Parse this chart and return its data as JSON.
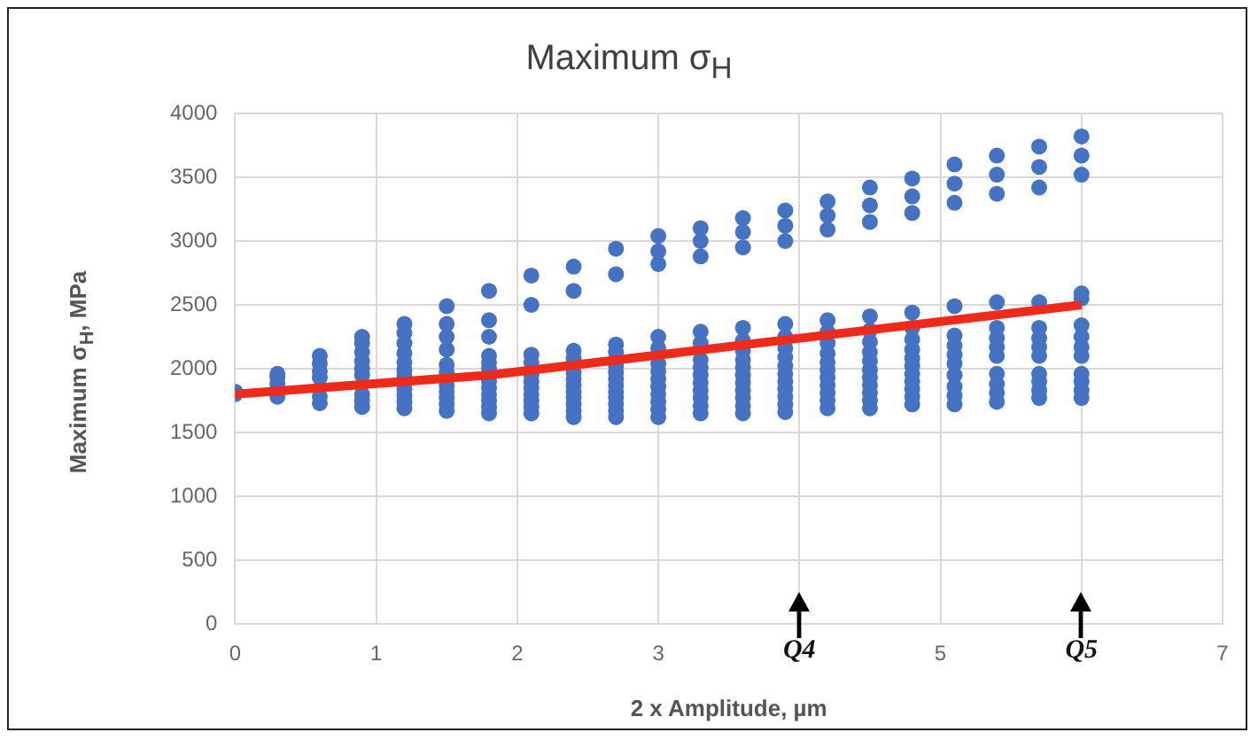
{
  "chart_data": {
    "type": "scatter",
    "title": "Maximum σ$_{H}$",
    "xlabel": "2 x Amplitude, µm",
    "ylabel": "Maximum σ$_{H}$, MPa",
    "xlim": [
      0,
      7
    ],
    "xticks": [
      0,
      1,
      2,
      3,
      {
        "value": 4,
        "label": null
      },
      5,
      {
        "value": 6,
        "label": null
      },
      7
    ],
    "ylim": [
      0,
      4000
    ],
    "yticks": [
      0,
      500,
      1000,
      1500,
      2000,
      2500,
      3000,
      3500,
      4000
    ],
    "grid": true,
    "marker": "circle",
    "annotations": [
      "Q4",
      "Q5"
    ],
    "series": [
      {
        "color": "#4472c4",
        "x": [
          0,
          0,
          0.3,
          0.3,
          0.3,
          0.3,
          0.6,
          0.6,
          0.6,
          0.6,
          0.6,
          0.6,
          0.9,
          0.9,
          0.9,
          0.9,
          0.9,
          0.9,
          0.9,
          0.9,
          0.9,
          1.2,
          1.2,
          1.2,
          1.2,
          1.2,
          1.2,
          1.2,
          1.2,
          1.2,
          1.2,
          1.2,
          1.5,
          1.5,
          1.5,
          1.5,
          1.5,
          1.5,
          1.5,
          1.5,
          1.5,
          1.5,
          1.5,
          1.8,
          1.8,
          1.8,
          1.8,
          1.8,
          1.8,
          1.8,
          1.8,
          1.8,
          1.8,
          1.8,
          1.8,
          2.1,
          2.1,
          2.1,
          2.1,
          2.1,
          2.1,
          2.1,
          2.1,
          2.1,
          2.1,
          2.1,
          2.4,
          2.4,
          2.4,
          2.4,
          2.4,
          2.4,
          2.4,
          2.4,
          2.4,
          2.4,
          2.4,
          2.4,
          2.7,
          2.7,
          2.7,
          2.7,
          2.7,
          2.7,
          2.7,
          2.7,
          2.7,
          2.7,
          2.7,
          2.7,
          2.7,
          3.0,
          3.0,
          3.0,
          3.0,
          3.0,
          3.0,
          3.0,
          3.0,
          3.0,
          3.0,
          3.0,
          3.0,
          3.0,
          3.3,
          3.3,
          3.3,
          3.3,
          3.3,
          3.3,
          3.3,
          3.3,
          3.3,
          3.3,
          3.3,
          3.3,
          3.3,
          3.6,
          3.6,
          3.6,
          3.6,
          3.6,
          3.6,
          3.6,
          3.6,
          3.6,
          3.6,
          3.6,
          3.6,
          3.6,
          3.6,
          3.9,
          3.9,
          3.9,
          3.9,
          3.9,
          3.9,
          3.9,
          3.9,
          3.9,
          3.9,
          3.9,
          3.9,
          3.9,
          3.9,
          4.2,
          4.2,
          4.2,
          4.2,
          4.2,
          4.2,
          4.2,
          4.2,
          4.2,
          4.2,
          4.2,
          4.2,
          4.2,
          4.2,
          4.5,
          4.5,
          4.5,
          4.5,
          4.5,
          4.5,
          4.5,
          4.5,
          4.5,
          4.5,
          4.5,
          4.5,
          4.5,
          4.5,
          4.8,
          4.8,
          4.8,
          4.8,
          4.8,
          4.8,
          4.8,
          4.8,
          4.8,
          4.8,
          4.8,
          4.8,
          4.8,
          4.8,
          5.1,
          5.1,
          5.1,
          5.1,
          5.1,
          5.1,
          5.1,
          5.1,
          5.1,
          5.1,
          5.1,
          5.1,
          5.4,
          5.4,
          5.4,
          5.4,
          5.4,
          5.4,
          5.4,
          5.4,
          5.4,
          5.4,
          5.4,
          5.4,
          5.7,
          5.7,
          5.7,
          5.7,
          5.7,
          5.7,
          5.7,
          5.7,
          5.7,
          5.7,
          5.7,
          5.7,
          6.0,
          6.0,
          6.0,
          6.0,
          6.0,
          6.0,
          6.0,
          6.0,
          6.0,
          6.0,
          6.0,
          6.0,
          6.0
        ],
        "values": [
          1800,
          1820,
          1780,
          1880,
          1930,
          1960,
          1730,
          1780,
          1930,
          1980,
          2040,
          2100,
          1700,
          1750,
          1800,
          1950,
          2000,
          2060,
          2130,
          2200,
          2250,
          1690,
          1740,
          1790,
          1840,
          1940,
          1990,
          2050,
          2120,
          2200,
          2280,
          2350,
          1670,
          1720,
          1770,
          1820,
          1870,
          1970,
          2030,
          2150,
          2250,
          2350,
          2490,
          1650,
          1700,
          1750,
          1800,
          1850,
          1900,
          2000,
          2050,
          2100,
          2250,
          2380,
          2610,
          1650,
          1700,
          1750,
          1800,
          1850,
          1900,
          1950,
          2050,
          2110,
          2500,
          2730,
          1620,
          1670,
          1720,
          1770,
          1820,
          1870,
          1920,
          1970,
          2080,
          2140,
          2610,
          2800,
          1620,
          1670,
          1720,
          1770,
          1820,
          1870,
          1920,
          1970,
          2020,
          2130,
          2190,
          2740,
          2940,
          1620,
          1680,
          1740,
          1800,
          1860,
          1920,
          1980,
          2040,
          2160,
          2250,
          2820,
          2920,
          3040,
          1650,
          1710,
          1770,
          1830,
          1890,
          1950,
          2010,
          2070,
          2200,
          2290,
          2880,
          3000,
          3100,
          1650,
          1710,
          1770,
          1830,
          1890,
          1950,
          2010,
          2070,
          2140,
          2220,
          2320,
          2950,
          3070,
          3180,
          1660,
          1720,
          1780,
          1840,
          1900,
          1960,
          2020,
          2090,
          2160,
          2250,
          2350,
          3000,
          3120,
          3240,
          1690,
          1750,
          1810,
          1870,
          1930,
          1990,
          2050,
          2120,
          2200,
          2290,
          2380,
          3090,
          3200,
          3310,
          1690,
          1750,
          1810,
          1870,
          1930,
          1990,
          2060,
          2130,
          2210,
          2300,
          2410,
          3150,
          3280,
          3420,
          1720,
          1780,
          1840,
          1900,
          1960,
          2020,
          2080,
          2150,
          2230,
          2320,
          2440,
          3220,
          3350,
          3490,
          1720,
          1790,
          1860,
          1950,
          2040,
          2110,
          2180,
          2260,
          2490,
          3300,
          3450,
          3600,
          1740,
          1810,
          1880,
          1960,
          2100,
          2170,
          2240,
          2320,
          2520,
          3370,
          3520,
          3670,
          1770,
          1830,
          1900,
          1960,
          2100,
          2170,
          2240,
          2320,
          2520,
          3420,
          3580,
          3740,
          1770,
          1830,
          1900,
          1960,
          2100,
          2170,
          2250,
          2340,
          2550,
          2590,
          3520,
          3670,
          3820
        ]
      },
      {
        "type": "line",
        "color": "#ee2a1b",
        "x": [
          0,
          1.8,
          6
        ],
        "values": [
          1800,
          1950,
          2500
        ],
        "marker": "none"
      }
    ]
  }
}
